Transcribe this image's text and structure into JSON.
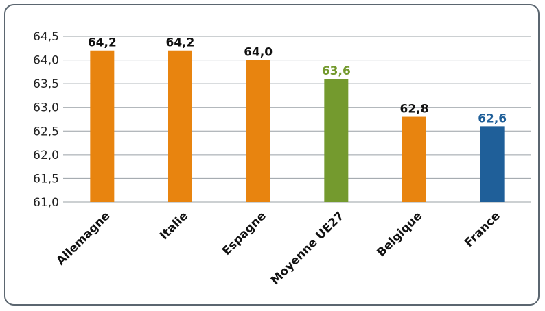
{
  "chart_data": {
    "type": "bar",
    "categories": [
      "Allemagne",
      "Italie",
      "Espagne",
      "Moyenne UE27",
      "Belgique",
      "France"
    ],
    "values": [
      64.2,
      64.2,
      64.0,
      63.6,
      62.8,
      62.6
    ],
    "value_labels": [
      "64,2",
      "64,2",
      "64,0",
      "63,6",
      "62,8",
      "62,6"
    ],
    "bar_colors": [
      "#e8840f",
      "#e8840f",
      "#e8840f",
      "#749a2e",
      "#e8840f",
      "#1f5f99"
    ],
    "label_colors": [
      "#111111",
      "#111111",
      "#111111",
      "#749a2e",
      "#111111",
      "#1f5f99"
    ],
    "y_ticks": [
      {
        "value": 61.0,
        "label": "61,0"
      },
      {
        "value": 61.5,
        "label": "61,5"
      },
      {
        "value": 62.0,
        "label": "62,0"
      },
      {
        "value": 62.5,
        "label": "62,5"
      },
      {
        "value": 63.0,
        "label": "63,0"
      },
      {
        "value": 63.5,
        "label": "63,5"
      },
      {
        "value": 64.0,
        "label": "64,0"
      },
      {
        "value": 64.5,
        "label": "64,5"
      }
    ],
    "ylim": [
      61.0,
      64.5
    ],
    "grid": true,
    "gridline_color": "#9aa0a6"
  }
}
